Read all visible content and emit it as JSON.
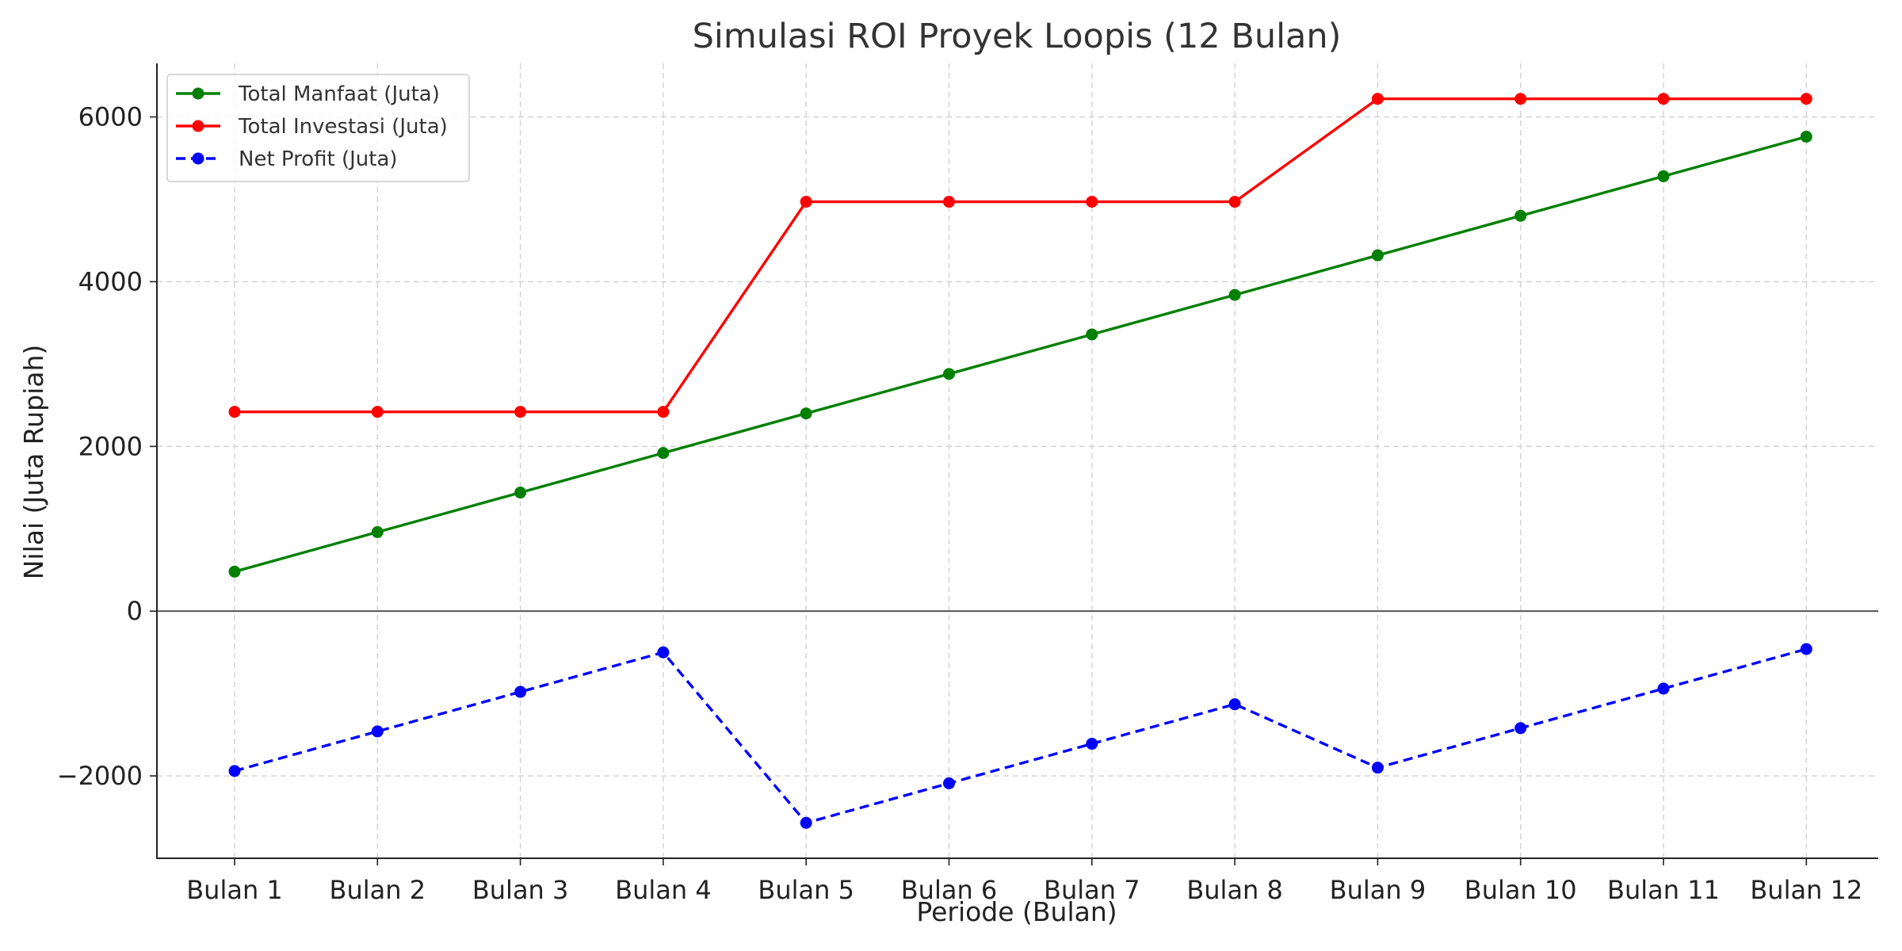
{
  "chart_data": {
    "type": "line",
    "title": "Simulasi ROI Proyek Loopis (12 Bulan)",
    "xlabel": "Periode (Bulan)",
    "ylabel": "Nilai (Juta Rupiah)",
    "categories": [
      "Bulan 1",
      "Bulan 2",
      "Bulan 3",
      "Bulan 4",
      "Bulan 5",
      "Bulan 6",
      "Bulan 7",
      "Bulan 8",
      "Bulan 9",
      "Bulan 10",
      "Bulan 11",
      "Bulan 12"
    ],
    "ylim": [
      -3000,
      6650
    ],
    "yticks": [
      -2000,
      0,
      2000,
      4000,
      6000
    ],
    "ytick_labels": [
      "−2000",
      "0",
      "2000",
      "4000",
      "6000"
    ],
    "grid": true,
    "legend_position": "top-left",
    "series": [
      {
        "name": "Total Manfaat (Juta)",
        "color": "#008000",
        "style": "solid",
        "values": [
          480,
          960,
          1440,
          1920,
          2400,
          2880,
          3360,
          3840,
          4320,
          4800,
          5280,
          5760
        ]
      },
      {
        "name": "Total Investasi (Juta)",
        "color": "#ff0000",
        "style": "solid",
        "values": [
          2420,
          2420,
          2420,
          2420,
          4970,
          4970,
          4970,
          4970,
          6220,
          6220,
          6220,
          6220
        ]
      },
      {
        "name": "Net Profit (Juta)",
        "color": "#0000ff",
        "style": "dashed",
        "values": [
          -1940,
          -1460,
          -980,
          -500,
          -2570,
          -2090,
          -1610,
          -1130,
          -1900,
          -1420,
          -940,
          -460
        ]
      }
    ]
  }
}
